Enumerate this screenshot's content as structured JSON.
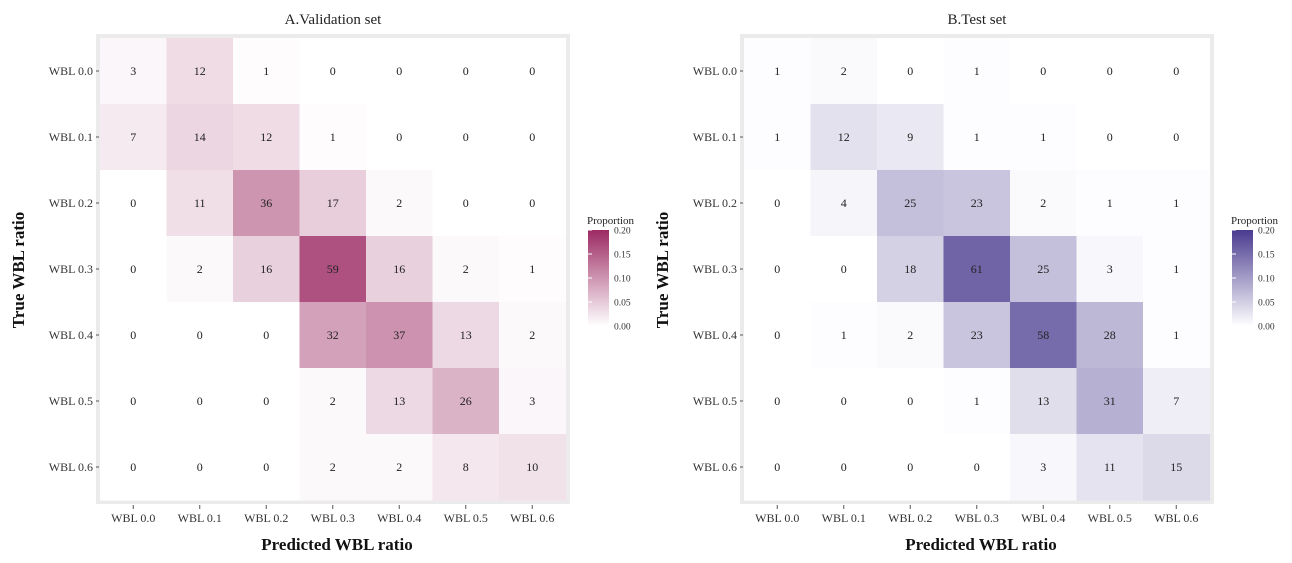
{
  "chart_data": [
    {
      "type": "heatmap",
      "title": "A.Validation set",
      "xlabel": "Predicted WBL ratio",
      "ylabel": "True WBL ratio",
      "x_categories": [
        "WBL 0.0",
        "WBL 0.1",
        "WBL 0.2",
        "WBL 0.3",
        "WBL 0.4",
        "WBL 0.5",
        "WBL 0.6"
      ],
      "y_categories": [
        "WBL 0.0",
        "WBL 0.1",
        "WBL 0.2",
        "WBL 0.3",
        "WBL 0.4",
        "WBL 0.5",
        "WBL 0.6"
      ],
      "values": [
        [
          3,
          12,
          1,
          0,
          0,
          0,
          0
        ],
        [
          7,
          14,
          12,
          1,
          0,
          0,
          0
        ],
        [
          0,
          11,
          36,
          17,
          2,
          0,
          0
        ],
        [
          0,
          2,
          16,
          59,
          16,
          2,
          1
        ],
        [
          0,
          0,
          0,
          32,
          37,
          13,
          2
        ],
        [
          0,
          0,
          0,
          2,
          13,
          26,
          3
        ],
        [
          0,
          0,
          0,
          2,
          2,
          8,
          10
        ]
      ],
      "color_scale": {
        "low": "#ffffff",
        "high": "#9c2a63"
      },
      "legend": {
        "title": "Proportion",
        "range": [
          0,
          0.2
        ],
        "ticks": [
          "0.20",
          "0.15",
          "0.10",
          "0.05",
          "0.00"
        ]
      }
    },
    {
      "type": "heatmap",
      "title": "B.Test set",
      "xlabel": "Predicted WBL ratio",
      "ylabel": "True WBL ratio",
      "x_categories": [
        "WBL 0.0",
        "WBL 0.1",
        "WBL 0.2",
        "WBL 0.3",
        "WBL 0.4",
        "WBL 0.5",
        "WBL 0.6"
      ],
      "y_categories": [
        "WBL 0.0",
        "WBL 0.1",
        "WBL 0.2",
        "WBL 0.3",
        "WBL 0.4",
        "WBL 0.5",
        "WBL 0.6"
      ],
      "values": [
        [
          1,
          2,
          0,
          1,
          0,
          0,
          0
        ],
        [
          1,
          12,
          9,
          1,
          1,
          0,
          0
        ],
        [
          0,
          4,
          25,
          23,
          2,
          1,
          1
        ],
        [
          0,
          0,
          18,
          61,
          25,
          3,
          1
        ],
        [
          0,
          1,
          2,
          23,
          58,
          28,
          1
        ],
        [
          0,
          0,
          0,
          1,
          13,
          31,
          7
        ],
        [
          0,
          0,
          0,
          0,
          3,
          11,
          15
        ]
      ],
      "color_scale": {
        "low": "#ffffff",
        "high": "#4a3b8f"
      },
      "legend": {
        "title": "Proportion",
        "range": [
          0,
          0.2
        ],
        "ticks": [
          "0.20",
          "0.15",
          "0.10",
          "0.05",
          "0.00"
        ]
      }
    }
  ]
}
